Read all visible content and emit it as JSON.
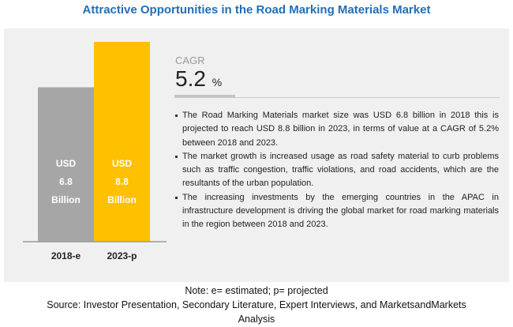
{
  "title": "Attractive Opportunities in the Road Marking Materials Market",
  "cagr": {
    "label": "CAGR",
    "value": "5.2",
    "unit": "%"
  },
  "bullets": [
    "The Road Marking Materials market size was USD 6.8 billion in 2018 this is projected to reach USD 8.8 billion in 2023, in terms of value at a CAGR of 5.2% between 2018 and 2023.",
    "The market growth is increased usage as road safety material to curb problems such as traffic congestion, traffic violations, and road accidents, which are the resultants of the urban population.",
    "The increasing investments by the emerging countries in the APAC in infrastructure development is driving the global market for road marking materials in the region between 2018 and 2023."
  ],
  "note": "Note: e= estimated; p= projected",
  "source": "Source: Investor Presentation, Secondary Literature, Expert Interviews, and MarketsandMarkets",
  "source2": "Analysis",
  "chart_data": {
    "type": "bar",
    "categories": [
      "2018-e",
      "2023-p"
    ],
    "values": [
      6.8,
      8.8
    ],
    "data_labels": [
      [
        "USD",
        "6.8",
        "Billion"
      ],
      [
        "USD",
        "8.8",
        "Billion"
      ]
    ],
    "colors": [
      "#a6a6a6",
      "#ffc000"
    ],
    "ylim": [
      0,
      8.8
    ]
  }
}
